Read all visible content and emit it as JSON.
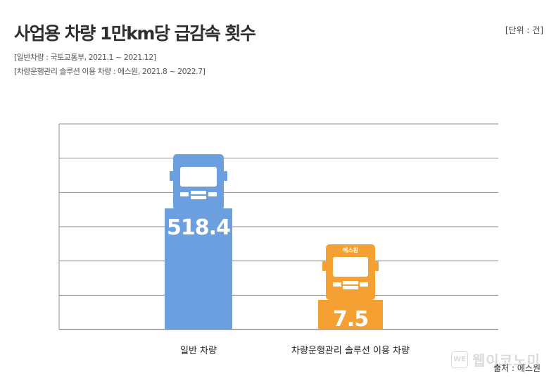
{
  "title": "사업용 차량 1만km당 급감속 횟수",
  "unit": "[단위 : 건]",
  "sources": [
    "[일반차량 : 국토교통부, 2021.1 ~ 2021.12]",
    "[차량운행관리 솔루션 이용 차량 : 에스원, 2021.8 ~ 2022.7]"
  ],
  "credit": "출처 : 에스원",
  "watermark": {
    "box": "WE",
    "text": "웹이코노미"
  },
  "colors": {
    "blue": "#6b9fdf",
    "orange": "#f4a033",
    "grid": "#8f8f8f"
  },
  "icons": [
    "truck-icon",
    "truck-icon"
  ],
  "chart_data": {
    "type": "bar",
    "categories": [
      "일반 차량",
      "차량운행관리 솔루션 이용 차량"
    ],
    "values": [
      518.4,
      7.5
    ],
    "value_labels": [
      "518.4",
      "7.5"
    ],
    "truck_badge": [
      "",
      "에스원"
    ],
    "grid": true,
    "gridline_count": 7
  }
}
